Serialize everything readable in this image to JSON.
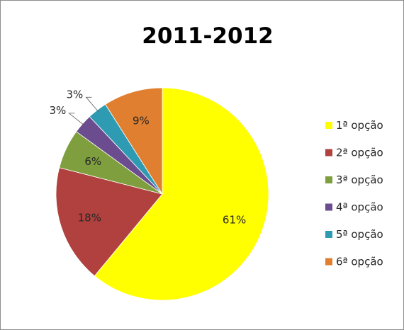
{
  "chart_data": {
    "type": "pie",
    "title": "2011-2012",
    "categories": [
      "1ª opção",
      "2ª opção",
      "3ª opção",
      "4ª opção",
      "5ª opção",
      "6ª opção"
    ],
    "values": [
      61,
      18,
      6,
      3,
      3,
      9
    ],
    "labels": [
      "61%",
      "18%",
      "6%",
      "3%",
      "3%",
      "9%"
    ],
    "colors": [
      "#ffff00",
      "#b0413e",
      "#7f9f3f",
      "#6b4c8e",
      "#2f9bb3",
      "#e07f2f"
    ],
    "legend_position": "right"
  }
}
